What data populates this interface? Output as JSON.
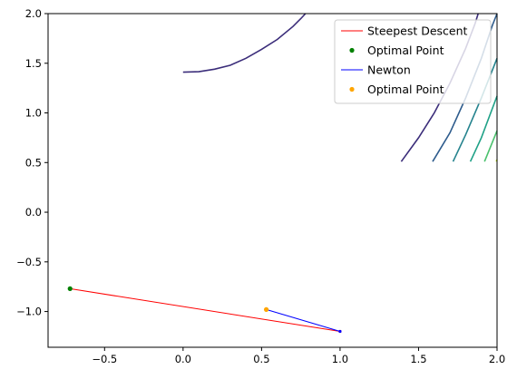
{
  "chart_data": {
    "type": "line",
    "title": "",
    "xlabel": "",
    "ylabel": "",
    "xlim": [
      -0.86,
      2.0
    ],
    "ylim": [
      -1.36,
      2.0
    ],
    "grid": false,
    "legend_position": "top-right",
    "x_ticks": [
      -0.5,
      0.0,
      0.5,
      1.0,
      1.5,
      2.0
    ],
    "x_tick_labels": [
      "−0.5",
      "0.0",
      "0.5",
      "1.0",
      "1.5",
      "2.0"
    ],
    "y_ticks": [
      -1.0,
      -0.5,
      0.0,
      0.5,
      1.0,
      1.5,
      2.0
    ],
    "y_tick_labels": [
      "−1.0",
      "−0.5",
      "0.0",
      "0.5",
      "1.0",
      "1.5",
      "2.0"
    ],
    "contours": [
      {
        "color": "#3b2d7a",
        "points": [
          [
            0.0,
            1.41
          ],
          [
            0.1,
            1.415
          ],
          [
            0.2,
            1.44
          ],
          [
            0.3,
            1.48
          ],
          [
            0.4,
            1.55
          ],
          [
            0.5,
            1.64
          ],
          [
            0.6,
            1.74
          ],
          [
            0.7,
            1.87
          ],
          [
            0.75,
            1.95
          ],
          [
            0.78,
            2.0
          ]
        ]
      },
      {
        "color": "#3b2d7a",
        "points": [
          [
            1.39,
            0.51
          ],
          [
            1.5,
            0.75
          ],
          [
            1.6,
            1.0
          ],
          [
            1.7,
            1.3
          ],
          [
            1.8,
            1.65
          ],
          [
            1.86,
            1.9
          ],
          [
            1.88,
            2.0
          ]
        ]
      },
      {
        "color": "#2d5b8c",
        "points": [
          [
            1.59,
            0.51
          ],
          [
            1.7,
            0.8
          ],
          [
            1.8,
            1.15
          ],
          [
            1.9,
            1.55
          ],
          [
            1.97,
            1.88
          ],
          [
            2.0,
            2.0
          ]
        ]
      },
      {
        "color": "#25838e",
        "points": [
          [
            1.72,
            0.51
          ],
          [
            1.8,
            0.78
          ],
          [
            1.9,
            1.15
          ],
          [
            2.0,
            1.55
          ]
        ]
      },
      {
        "color": "#1fa187",
        "points": [
          [
            1.83,
            0.51
          ],
          [
            1.9,
            0.75
          ],
          [
            2.0,
            1.17
          ]
        ]
      },
      {
        "color": "#4ac16d",
        "points": [
          [
            1.92,
            0.51
          ],
          [
            2.0,
            0.82
          ]
        ]
      },
      {
        "color": "#bddf26",
        "points": [
          [
            1.995,
            0.51
          ],
          [
            2.0,
            0.53
          ]
        ]
      }
    ],
    "series": [
      {
        "name": "Steepest Descent",
        "kind": "line",
        "color": "#ff0000",
        "x": [
          1.0,
          -0.72
        ],
        "y": [
          -1.2,
          -0.77
        ]
      },
      {
        "name": "Optimal Point",
        "kind": "marker",
        "color": "#008000",
        "x": [
          -0.72
        ],
        "y": [
          -0.77
        ]
      },
      {
        "name": "Newton",
        "kind": "line",
        "color": "#0000ff",
        "x": [
          1.0,
          0.53
        ],
        "y": [
          -1.2,
          -0.98
        ]
      },
      {
        "name": "Optimal Point",
        "kind": "marker",
        "color": "#ffa500",
        "x": [
          0.53
        ],
        "y": [
          -0.98
        ]
      }
    ]
  }
}
